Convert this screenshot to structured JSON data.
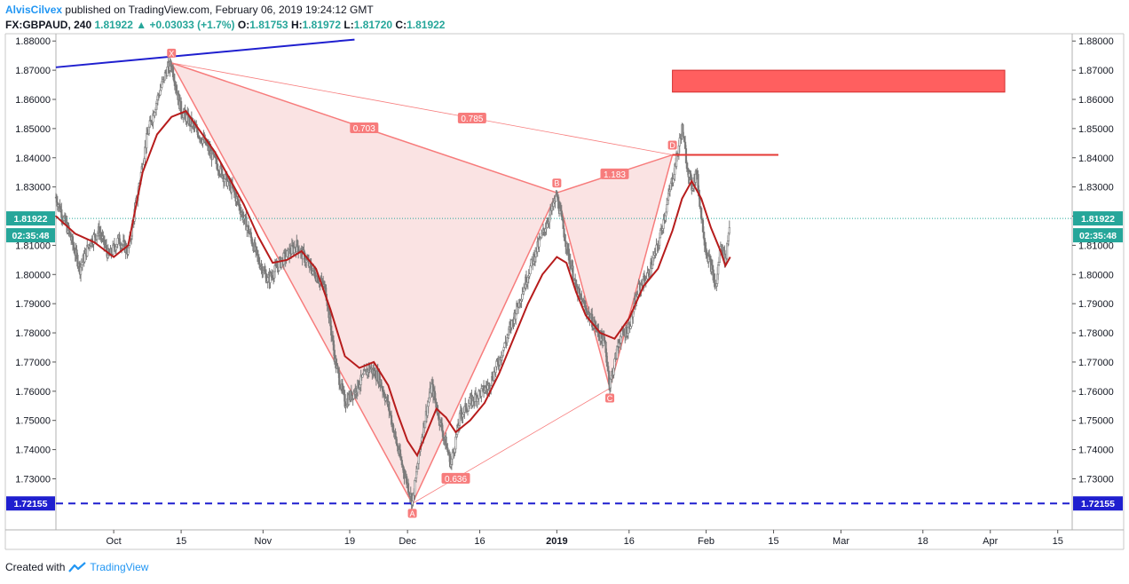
{
  "header": {
    "author": "AlvisCilvex",
    "published": "published on TradingView.com, February 06, 2019 19:24:12 GMT",
    "symbol": "FX:GBPAUD, 240",
    "last": "1.81922",
    "change_arrow": "▲",
    "change": "+0.03033 (+1.7%)",
    "o_label": "O:",
    "o": "1.81753",
    "h_label": "H:",
    "h": "1.81972",
    "l_label": "L:",
    "l": "1.81720",
    "c_label": "C:",
    "c": "1.81922"
  },
  "footer": {
    "created_with": "Created with",
    "brand": "TradingView",
    "logo_icon": "tradingview-logo-icon"
  },
  "colors": {
    "up": "#26a69a",
    "candle": "#7a7a7a",
    "ma": "#b71c1c",
    "pattern_fill": "#f8d7d7",
    "pattern_line": "#f77c7c",
    "blue": "#1f1fcf",
    "zone": "#ff5f5f",
    "badge_green": "#26a69a",
    "badge_blue": "#1f1fcf"
  },
  "chart_data": {
    "type": "candlestick",
    "symbol": "GBPAUD",
    "ylim": [
      1.7125,
      1.8825
    ],
    "y_ticks": [
      "1.88000",
      "1.87000",
      "1.86000",
      "1.85000",
      "1.84000",
      "1.83000",
      "1.82000",
      "1.81000",
      "1.80000",
      "1.79000",
      "1.78000",
      "1.77000",
      "1.76000",
      "1.75000",
      "1.74000",
      "1.73000"
    ],
    "x_ticks": [
      {
        "label": "Oct",
        "day": 0
      },
      {
        "label": "15",
        "day": 14
      },
      {
        "label": "Nov",
        "day": 31
      },
      {
        "label": "19",
        "day": 49
      },
      {
        "label": "Dec",
        "day": 61
      },
      {
        "label": "16",
        "day": 76
      },
      {
        "label": "2019",
        "day": 92,
        "bold": true
      },
      {
        "label": "16",
        "day": 107
      },
      {
        "label": "Feb",
        "day": 123
      },
      {
        "label": "15",
        "day": 137
      },
      {
        "label": "Mar",
        "day": 151
      },
      {
        "label": "18",
        "day": 168
      },
      {
        "label": "Apr",
        "day": 182
      },
      {
        "label": "15",
        "day": 196
      }
    ],
    "x_start_day": -12,
    "x_end_day": 199,
    "last_day": 128,
    "price_trace": [
      {
        "day": -12,
        "p": 1.8265
      },
      {
        "day": -9,
        "p": 1.813
      },
      {
        "day": -7,
        "p": 1.802
      },
      {
        "day": -5,
        "p": 1.811
      },
      {
        "day": -3,
        "p": 1.815
      },
      {
        "day": -1,
        "p": 1.806
      },
      {
        "day": 1,
        "p": 1.812
      },
      {
        "day": 3,
        "p": 1.808
      },
      {
        "day": 5,
        "p": 1.828
      },
      {
        "day": 7,
        "p": 1.848
      },
      {
        "day": 9,
        "p": 1.86
      },
      {
        "day": 11,
        "p": 1.87
      },
      {
        "day": 12,
        "p": 1.872
      },
      {
        "day": 14,
        "p": 1.856
      },
      {
        "day": 16,
        "p": 1.852
      },
      {
        "day": 19,
        "p": 1.845
      },
      {
        "day": 22,
        "p": 1.836
      },
      {
        "day": 25,
        "p": 1.828
      },
      {
        "day": 28,
        "p": 1.815
      },
      {
        "day": 30,
        "p": 1.805
      },
      {
        "day": 32,
        "p": 1.798
      },
      {
        "day": 35,
        "p": 1.805
      },
      {
        "day": 38,
        "p": 1.81
      },
      {
        "day": 41,
        "p": 1.802
      },
      {
        "day": 44,
        "p": 1.795
      },
      {
        "day": 46,
        "p": 1.77
      },
      {
        "day": 48,
        "p": 1.756
      },
      {
        "day": 50,
        "p": 1.76
      },
      {
        "day": 53,
        "p": 1.768
      },
      {
        "day": 55,
        "p": 1.765
      },
      {
        "day": 57,
        "p": 1.755
      },
      {
        "day": 59,
        "p": 1.74
      },
      {
        "day": 61,
        "p": 1.728
      },
      {
        "day": 62,
        "p": 1.722
      },
      {
        "day": 64,
        "p": 1.745
      },
      {
        "day": 66,
        "p": 1.762
      },
      {
        "day": 68,
        "p": 1.748
      },
      {
        "day": 70,
        "p": 1.735
      },
      {
        "day": 72,
        "p": 1.752
      },
      {
        "day": 75,
        "p": 1.758
      },
      {
        "day": 78,
        "p": 1.762
      },
      {
        "day": 81,
        "p": 1.775
      },
      {
        "day": 84,
        "p": 1.79
      },
      {
        "day": 87,
        "p": 1.805
      },
      {
        "day": 90,
        "p": 1.818
      },
      {
        "day": 92,
        "p": 1.827
      },
      {
        "day": 94,
        "p": 1.81
      },
      {
        "day": 96,
        "p": 1.795
      },
      {
        "day": 98,
        "p": 1.788
      },
      {
        "day": 100,
        "p": 1.782
      },
      {
        "day": 102,
        "p": 1.776
      },
      {
        "day": 103,
        "p": 1.762
      },
      {
        "day": 105,
        "p": 1.778
      },
      {
        "day": 107,
        "p": 1.782
      },
      {
        "day": 109,
        "p": 1.795
      },
      {
        "day": 111,
        "p": 1.8
      },
      {
        "day": 113,
        "p": 1.81
      },
      {
        "day": 115,
        "p": 1.825
      },
      {
        "day": 117,
        "p": 1.841
      },
      {
        "day": 118,
        "p": 1.85
      },
      {
        "day": 119,
        "p": 1.838
      },
      {
        "day": 120,
        "p": 1.83
      },
      {
        "day": 121,
        "p": 1.835
      },
      {
        "day": 122,
        "p": 1.82
      },
      {
        "day": 123,
        "p": 1.808
      },
      {
        "day": 124,
        "p": 1.803
      },
      {
        "day": 125,
        "p": 1.795
      },
      {
        "day": 126,
        "p": 1.81
      },
      {
        "day": 127,
        "p": 1.805
      },
      {
        "day": 128,
        "p": 1.8192
      }
    ],
    "moving_average": [
      {
        "day": -12,
        "p": 1.82
      },
      {
        "day": -8,
        "p": 1.814
      },
      {
        "day": -4,
        "p": 1.811
      },
      {
        "day": 0,
        "p": 1.806
      },
      {
        "day": 3,
        "p": 1.81
      },
      {
        "day": 6,
        "p": 1.835
      },
      {
        "day": 9,
        "p": 1.848
      },
      {
        "day": 12,
        "p": 1.854
      },
      {
        "day": 15,
        "p": 1.856
      },
      {
        "day": 18,
        "p": 1.849
      },
      {
        "day": 21,
        "p": 1.842
      },
      {
        "day": 24,
        "p": 1.833
      },
      {
        "day": 27,
        "p": 1.824
      },
      {
        "day": 30,
        "p": 1.813
      },
      {
        "day": 33,
        "p": 1.804
      },
      {
        "day": 36,
        "p": 1.805
      },
      {
        "day": 39,
        "p": 1.808
      },
      {
        "day": 42,
        "p": 1.802
      },
      {
        "day": 45,
        "p": 1.788
      },
      {
        "day": 48,
        "p": 1.772
      },
      {
        "day": 51,
        "p": 1.768
      },
      {
        "day": 54,
        "p": 1.77
      },
      {
        "day": 57,
        "p": 1.762
      },
      {
        "day": 59,
        "p": 1.752
      },
      {
        "day": 61,
        "p": 1.743
      },
      {
        "day": 63,
        "p": 1.738
      },
      {
        "day": 65,
        "p": 1.746
      },
      {
        "day": 67,
        "p": 1.754
      },
      {
        "day": 69,
        "p": 1.751
      },
      {
        "day": 71,
        "p": 1.746
      },
      {
        "day": 74,
        "p": 1.75
      },
      {
        "day": 77,
        "p": 1.756
      },
      {
        "day": 80,
        "p": 1.766
      },
      {
        "day": 83,
        "p": 1.778
      },
      {
        "day": 86,
        "p": 1.79
      },
      {
        "day": 89,
        "p": 1.8
      },
      {
        "day": 92,
        "p": 1.806
      },
      {
        "day": 94,
        "p": 1.804
      },
      {
        "day": 96,
        "p": 1.794
      },
      {
        "day": 98,
        "p": 1.786
      },
      {
        "day": 101,
        "p": 1.78
      },
      {
        "day": 104,
        "p": 1.778
      },
      {
        "day": 107,
        "p": 1.785
      },
      {
        "day": 110,
        "p": 1.796
      },
      {
        "day": 113,
        "p": 1.802
      },
      {
        "day": 116,
        "p": 1.815
      },
      {
        "day": 118,
        "p": 1.826
      },
      {
        "day": 120,
        "p": 1.832
      },
      {
        "day": 122,
        "p": 1.826
      },
      {
        "day": 124,
        "p": 1.816
      },
      {
        "day": 126,
        "p": 1.808
      },
      {
        "day": 127,
        "p": 1.803
      },
      {
        "day": 128,
        "p": 1.806
      }
    ],
    "harmonic_pattern": {
      "points": [
        {
          "label": "X",
          "day": 12,
          "p": 1.8725
        },
        {
          "label": "A",
          "day": 62,
          "p": 1.7215
        },
        {
          "label": "B",
          "day": 92,
          "p": 1.828
        },
        {
          "label": "C",
          "day": 103,
          "p": 1.761
        },
        {
          "label": "D",
          "day": 116,
          "p": 1.841
        }
      ],
      "ratios": [
        {
          "label": "0.703",
          "from": "X",
          "to": "B"
        },
        {
          "label": "0.785",
          "from": "X",
          "to": "D"
        },
        {
          "label": "1.183",
          "from": "B",
          "to": "D"
        },
        {
          "label": "0.636",
          "from": "A",
          "to": "C"
        }
      ]
    },
    "annotations": {
      "trendline": [
        {
          "day": -12,
          "p": 1.871
        },
        {
          "day": 50,
          "p": 1.8805
        }
      ],
      "support_level": "1.72155",
      "current_price": "1.81922",
      "countdown": "02:35:48",
      "resistance_segment": {
        "from_day": 116,
        "to_day": 138,
        "p": 1.841
      },
      "sell_zone": {
        "from_day": 116,
        "to_day": 185,
        "p_top": 1.87,
        "p_bottom": 1.8625
      }
    },
    "grid": false
  }
}
